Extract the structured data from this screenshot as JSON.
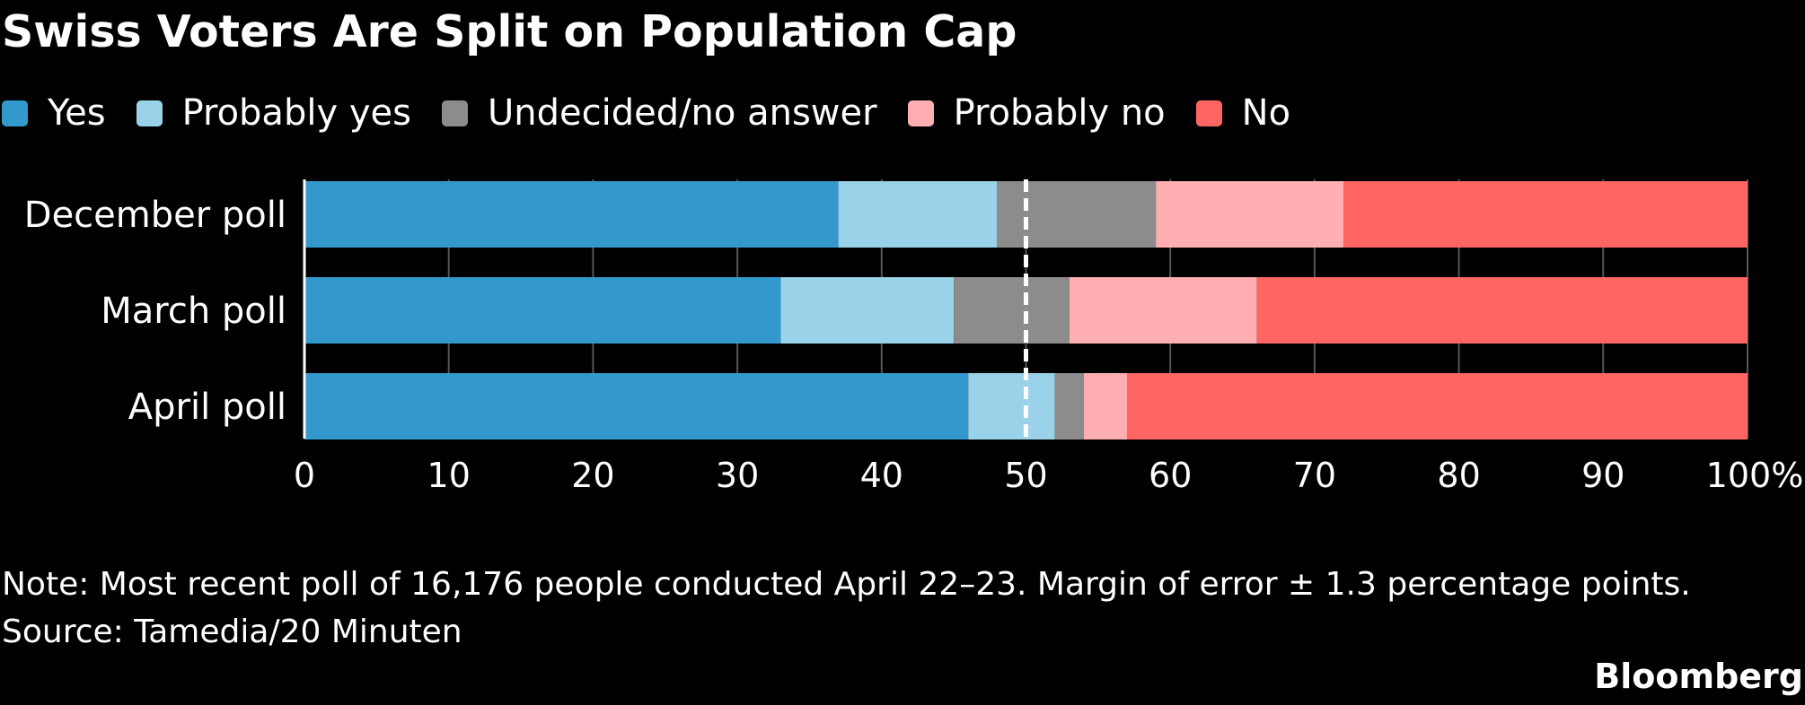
{
  "title": "Swiss Voters Are Split on Population Cap",
  "legend": [
    {
      "label": "Yes",
      "color": "#3399cc"
    },
    {
      "label": "Probably yes",
      "color": "#99d2e9"
    },
    {
      "label": "Undecided/no answer",
      "color": "#8c8c8c"
    },
    {
      "label": "Probably no",
      "color": "#ffafb1"
    },
    {
      "label": "No",
      "color": "#ff6663"
    }
  ],
  "chart_data": {
    "type": "bar",
    "orientation": "horizontal",
    "stacked": true,
    "categories": [
      "December poll",
      "March poll",
      "April poll"
    ],
    "series": [
      {
        "name": "Yes",
        "color": "#3399cc",
        "values": [
          37,
          33,
          46
        ]
      },
      {
        "name": "Probably yes",
        "color": "#99d2e9",
        "values": [
          11,
          12,
          6
        ]
      },
      {
        "name": "Undecided/no answer",
        "color": "#8c8c8c",
        "values": [
          11,
          8,
          2
        ]
      },
      {
        "name": "Probably no",
        "color": "#ffafb1",
        "values": [
          13,
          13,
          3
        ]
      },
      {
        "name": "No",
        "color": "#ff6663",
        "values": [
          28,
          34,
          43
        ]
      }
    ],
    "xticks": [
      "0",
      "10",
      "20",
      "30",
      "40",
      "50",
      "60",
      "70",
      "80",
      "90",
      "100%"
    ],
    "xlim": [
      0,
      100
    ],
    "reference_line": 50,
    "grid": true
  },
  "note": "Note: Most recent poll of 16,176 people conducted April 22–23. Margin of error ± 1.3 percentage points.",
  "source": "Source: Tamedia/20 Minuten",
  "brand": "Bloomberg"
}
